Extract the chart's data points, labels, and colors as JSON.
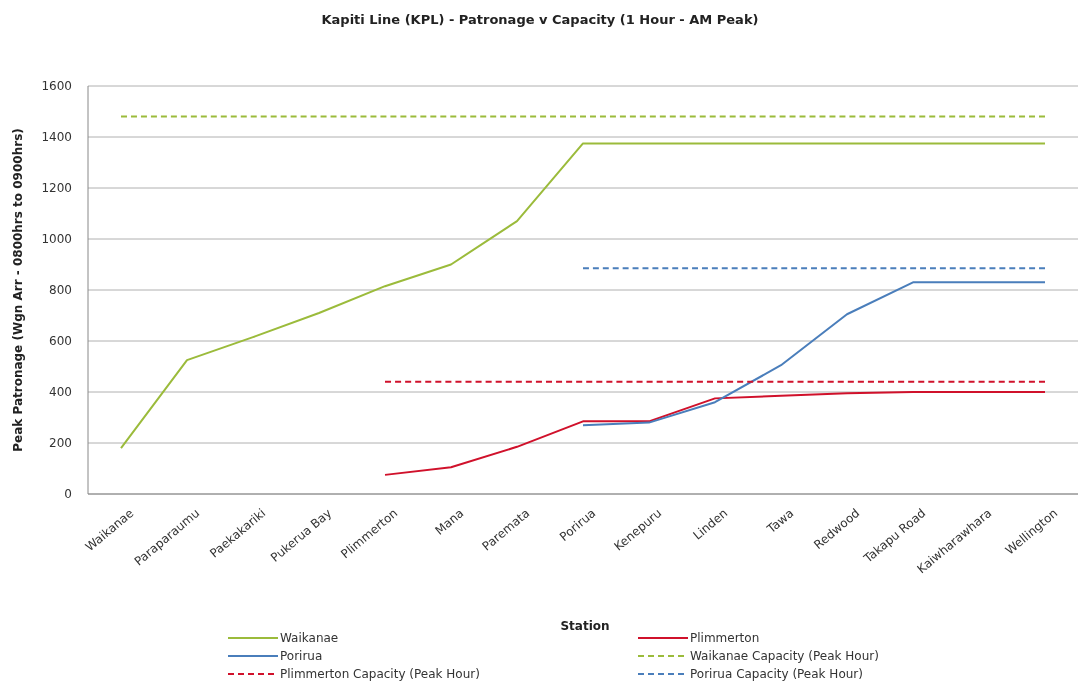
{
  "chart_data": {
    "type": "line",
    "title": "Kapiti Line (KPL) - Patronage v Capacity (1 Hour - AM Peak)",
    "xlabel": "Station",
    "ylabel": "Peak Patronage  (Wgn Arr - 0800hrs to 0900hrs)",
    "categories": [
      "Waikanae",
      "Paraparaumu",
      "Paekakariki",
      "Pukerua Bay",
      "Plimmerton",
      "Mana",
      "Paremata",
      "Porirua",
      "Kenepuru",
      "Linden",
      "Tawa",
      "Redwood",
      "Takapu Road",
      "Kaiwharawhara",
      "Wellington"
    ],
    "ylim": [
      0,
      1600
    ],
    "yticks": [
      0,
      200,
      400,
      600,
      800,
      1000,
      1200,
      1400,
      1600
    ],
    "grid": "y",
    "legend": "bottom",
    "marker": "none",
    "series": [
      {
        "name": "Waikanae",
        "color": "#9bbb3b",
        "line_style": "solid",
        "values": [
          180,
          525,
          615,
          710,
          815,
          900,
          1070,
          1375,
          1375,
          1375,
          1375,
          1375,
          1375,
          1375,
          1375
        ]
      },
      {
        "name": "Plimmerton",
        "color": "#d0112b",
        "line_style": "solid",
        "values": [
          null,
          null,
          null,
          null,
          75,
          105,
          185,
          285,
          285,
          375,
          385,
          395,
          400,
          400,
          400
        ]
      },
      {
        "name": "Porirua",
        "color": "#4a7ebb",
        "line_style": "solid",
        "values": [
          null,
          null,
          null,
          null,
          null,
          null,
          null,
          270,
          280,
          360,
          505,
          705,
          830,
          830,
          830
        ]
      },
      {
        "name": "Waikanae Capacity (Peak Hour)",
        "color": "#9bbb3b",
        "line_style": "dashed",
        "values": [
          1480,
          1480,
          1480,
          1480,
          1480,
          1480,
          1480,
          1480,
          1480,
          1480,
          1480,
          1480,
          1480,
          1480,
          1480
        ]
      },
      {
        "name": "Plimmerton Capacity (Peak Hour)",
        "color": "#d0112b",
        "line_style": "dashed",
        "values": [
          null,
          null,
          null,
          null,
          440,
          440,
          440,
          440,
          440,
          440,
          440,
          440,
          440,
          440,
          440
        ]
      },
      {
        "name": "Porirua Capacity (Peak Hour)",
        "color": "#4a7ebb",
        "line_style": "dashed",
        "values": [
          null,
          null,
          null,
          null,
          null,
          null,
          null,
          885,
          885,
          885,
          885,
          885,
          885,
          885,
          885
        ]
      }
    ]
  }
}
